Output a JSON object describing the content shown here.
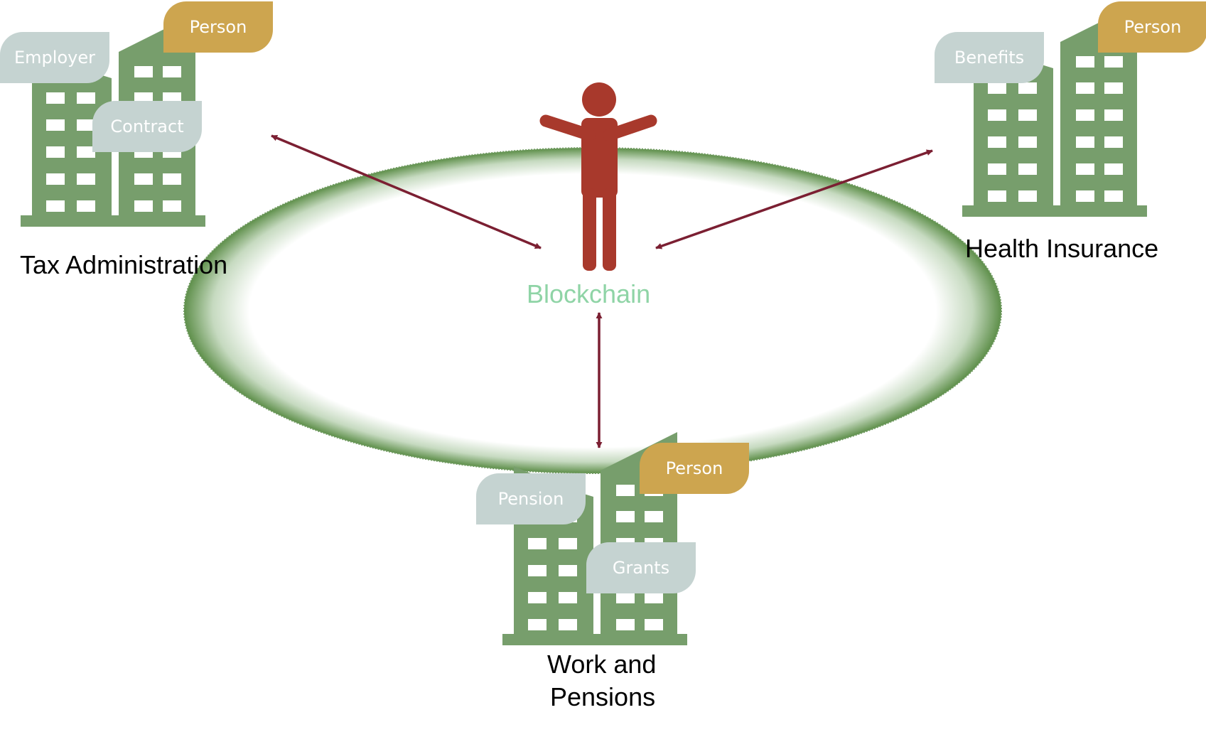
{
  "colors": {
    "building": "#779e6c",
    "window": "#ffffff",
    "tag_gray": "#c5d3d1",
    "tag_gold": "#cda54f",
    "person": "#a8392c",
    "arrow": "#7b1f32",
    "ring": "#5e8f4a",
    "blockchain_label": "#8fd4a6"
  },
  "center": {
    "label": "Blockchain",
    "icon": "person-icon"
  },
  "nodes": {
    "tax": {
      "label": "Tax Administration",
      "tags": [
        "Employer",
        "Person",
        "Contract"
      ]
    },
    "health": {
      "label": "Health Insurance",
      "tags": [
        "Benefits",
        "Person"
      ]
    },
    "work": {
      "label_line1": "Work and",
      "label_line2": "Pensions",
      "tags": [
        "Pension",
        "Person",
        "Grants"
      ]
    }
  }
}
